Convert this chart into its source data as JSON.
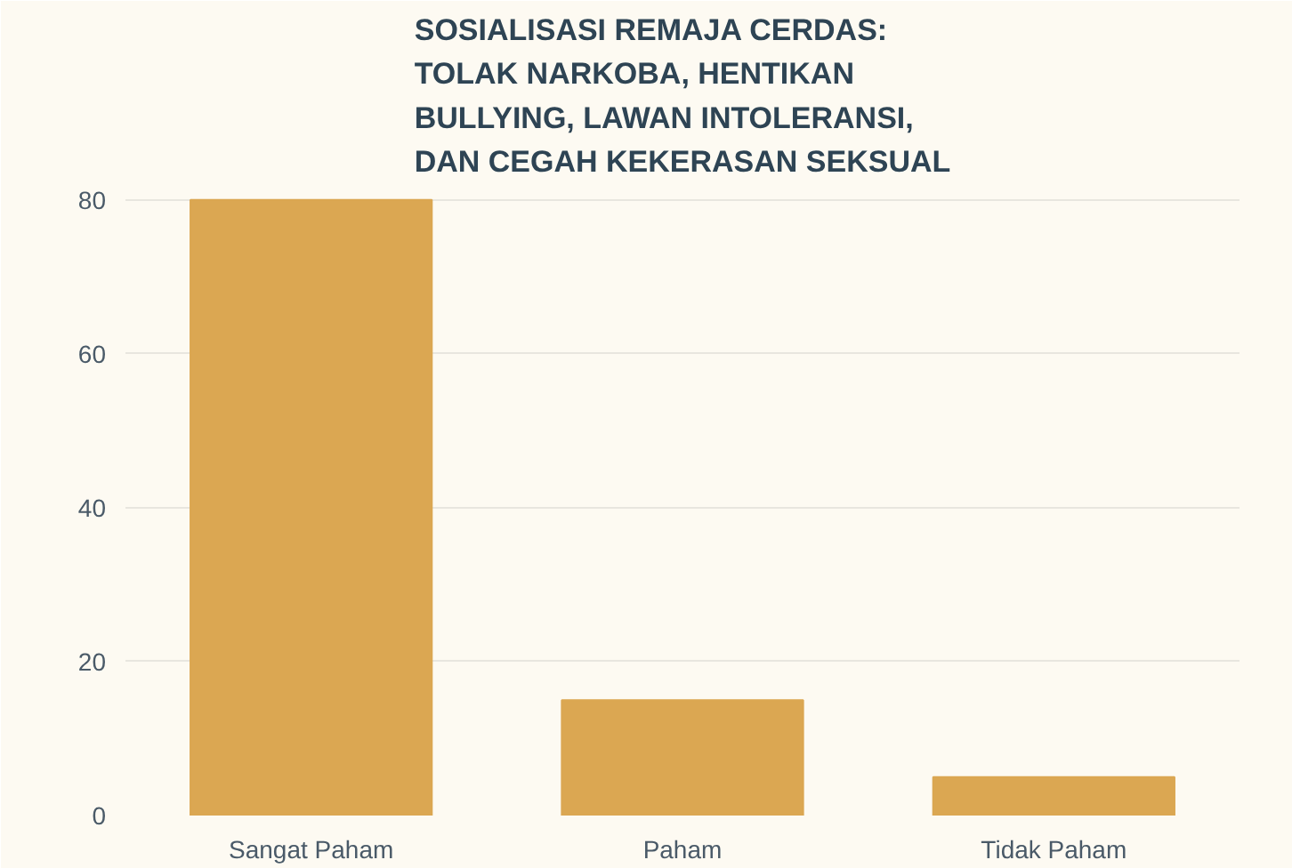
{
  "chart_data": {
    "type": "bar",
    "title": "SOSIALISASI REMAJA CERDAS:\nTOLAK NARKOBA, HENTIKAN\nBULLYING, LAWAN INTOLERANSI,\nDAN CEGAH KEKERASAN SEKSUAL",
    "categories": [
      "Sangat Paham",
      "Paham",
      "Tidak Paham"
    ],
    "values": [
      80,
      15,
      5
    ],
    "color": "#dba752",
    "ylim": [
      0,
      80
    ],
    "yticks": [
      0,
      20,
      40,
      60,
      80
    ],
    "grid": "y"
  }
}
